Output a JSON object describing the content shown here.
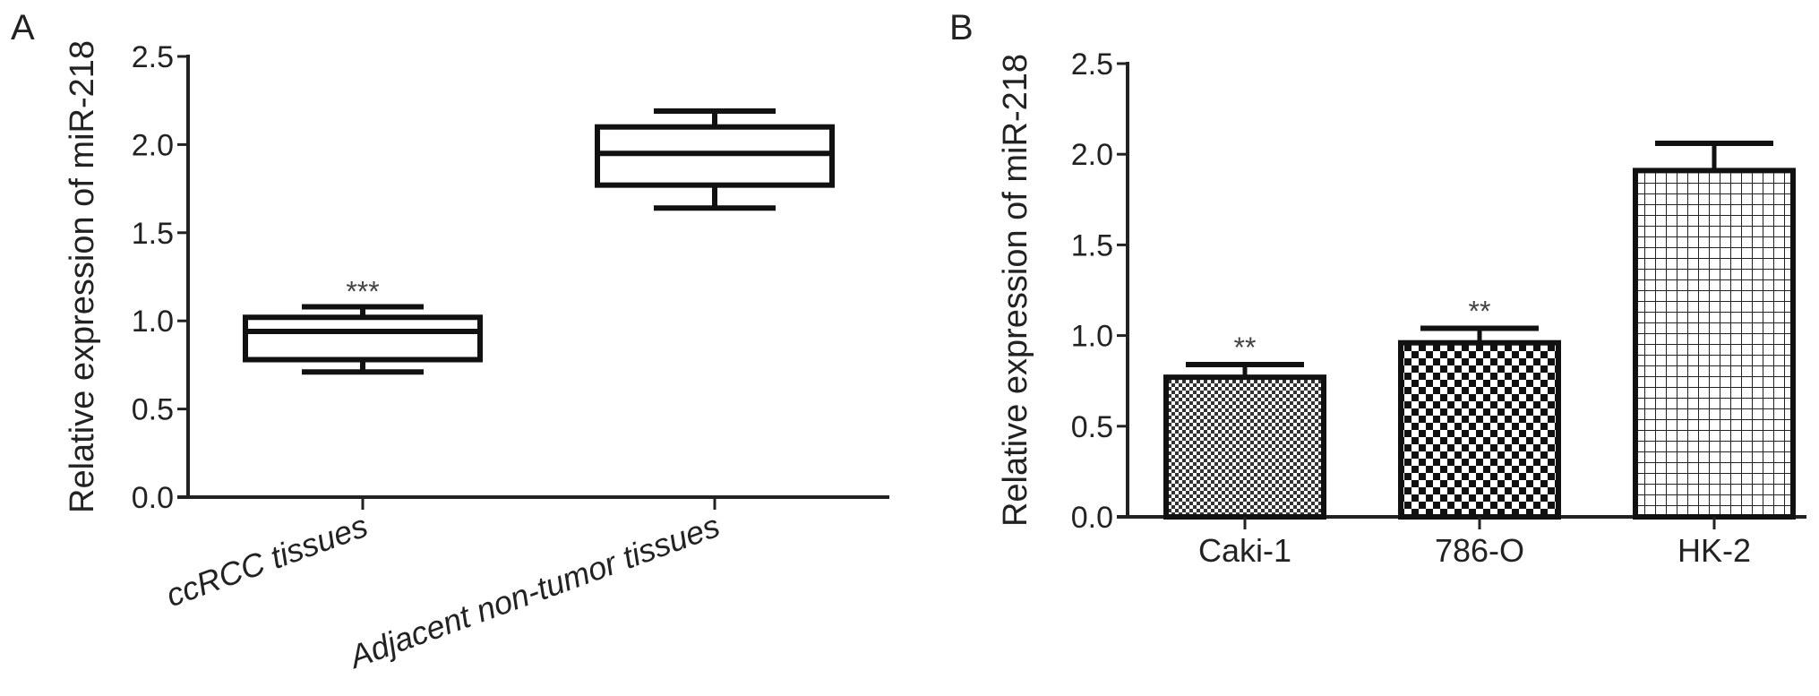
{
  "chart_data": [
    {
      "panel": "A",
      "type": "box",
      "title": "",
      "xlabel": "",
      "ylabel": "Relative expression of miR-218",
      "ylim": [
        0,
        2.5
      ],
      "yticks": [
        "0.0",
        "0.5",
        "1.0",
        "1.5",
        "2.0",
        "2.5"
      ],
      "grid": false,
      "categories": [
        "ccRCC tissues",
        "Adjacent non-tumor tissues"
      ],
      "boxes": [
        {
          "min": 0.71,
          "q1": 0.78,
          "median": 0.94,
          "q3": 1.02,
          "max": 1.08,
          "annotation": "***"
        },
        {
          "min": 1.64,
          "q1": 1.77,
          "median": 1.95,
          "q3": 2.1,
          "max": 2.19,
          "annotation": ""
        }
      ]
    },
    {
      "panel": "B",
      "type": "bar",
      "title": "",
      "xlabel": "",
      "ylabel": "Relative expression of miR-218",
      "ylim": [
        0,
        2.5
      ],
      "yticks": [
        "0.0",
        "0.5",
        "1.0",
        "1.5",
        "2.0",
        "2.5"
      ],
      "grid": false,
      "categories": [
        "Caki-1",
        "786-O",
        "HK-2"
      ],
      "values": [
        0.77,
        0.96,
        1.91
      ],
      "error_upper": [
        0.84,
        1.04,
        2.06
      ],
      "annotations": [
        "**",
        "**",
        ""
      ],
      "patterns": [
        "fine-dots",
        "checker",
        "grid"
      ]
    }
  ]
}
